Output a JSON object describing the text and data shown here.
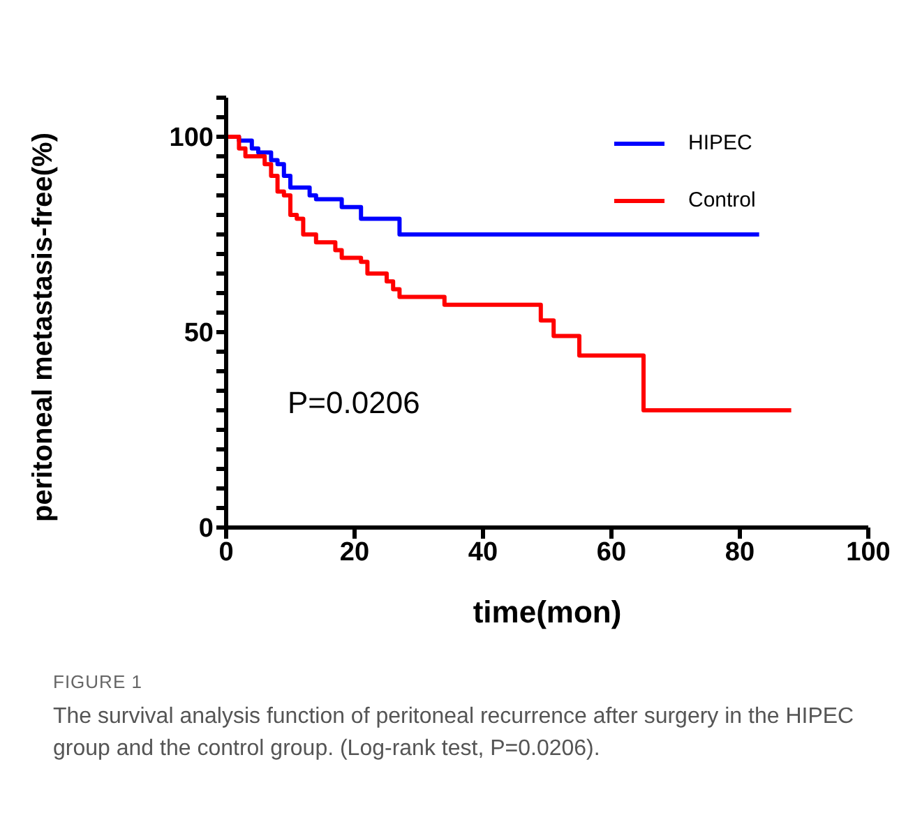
{
  "chart_data": {
    "type": "step",
    "xlabel": "time(mon)",
    "ylabel": "peritoneal metastasis-free(%)",
    "xlim": [
      0,
      100
    ],
    "xticks": [
      0,
      20,
      40,
      60,
      80,
      100
    ],
    "ylim": [
      0,
      110
    ],
    "yticks": [
      0,
      {
        "value": 5,
        "label": null
      },
      {
        "value": 10,
        "label": null
      },
      {
        "value": 15,
        "label": null
      },
      {
        "value": 20,
        "label": null
      },
      {
        "value": 25,
        "label": null
      },
      {
        "value": 30,
        "label": null
      },
      {
        "value": 35,
        "label": null
      },
      {
        "value": 40,
        "label": null
      },
      {
        "value": 45,
        "label": null
      },
      50,
      {
        "value": 55,
        "label": null
      },
      {
        "value": 60,
        "label": null
      },
      {
        "value": 65,
        "label": null
      },
      {
        "value": 70,
        "label": null
      },
      {
        "value": 75,
        "label": null
      },
      {
        "value": 80,
        "label": null
      },
      {
        "value": 85,
        "label": null
      },
      {
        "value": 90,
        "label": null
      },
      {
        "value": 95,
        "label": null
      },
      100,
      {
        "value": 105,
        "label": null
      },
      {
        "value": 110,
        "label": null
      }
    ],
    "series": [
      {
        "name": "HIPEC",
        "color": "#0000ff",
        "x": [
          0,
          2,
          4,
          5,
          7,
          8,
          9,
          10,
          13,
          14,
          18,
          21,
          27,
          83
        ],
        "values": [
          100,
          99,
          97,
          96,
          94,
          93,
          90,
          87,
          85,
          84,
          82,
          79,
          75,
          75
        ]
      },
      {
        "name": "Control",
        "color": "#ff0000",
        "x": [
          0,
          2,
          3,
          6,
          7,
          8,
          9,
          10,
          11,
          12,
          14,
          17,
          18,
          21,
          22,
          25,
          26,
          27,
          34,
          49,
          51,
          55,
          65,
          88
        ],
        "values": [
          100,
          97,
          95,
          93,
          90,
          86,
          85,
          80,
          79,
          75,
          73,
          71,
          69,
          68,
          65,
          63,
          61,
          59,
          57,
          53,
          49,
          44,
          30,
          30
        ]
      }
    ],
    "legend": "top right",
    "grid": false,
    "marker": "none",
    "line_style": "solid",
    "annotations": [
      "P=0.0206",
      "FIGURE 1",
      "The survival analysis function of peritoneal recurrence after surgery in the HIPEC group and the control group. (Log-rank test, P=0.0206)."
    ]
  }
}
